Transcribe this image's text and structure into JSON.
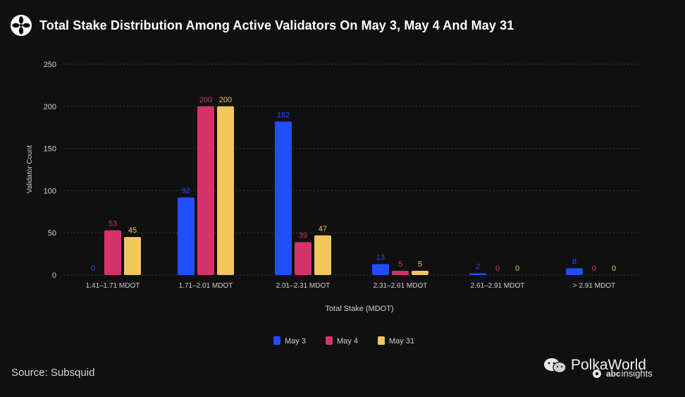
{
  "header": {
    "title": "Total Stake Distribution Among Active Validators On May 3, May 4 And May 31",
    "logo_icon": "flower-logo-icon"
  },
  "footer": {
    "source": "Source: Subsquid"
  },
  "watermark": {
    "brand": "PolkaWorld",
    "sub_brand": "insights",
    "sub_prefix": "abc",
    "icon": "wechat-icon"
  },
  "colors": {
    "background": "#101010",
    "grid": "#3a3a3a",
    "axis_text": "#d0d0d0",
    "May 3": "#1f4fff",
    "May 4": "#d6336c",
    "May 31": "#f2c75c"
  },
  "chart_data": {
    "type": "bar",
    "title": "Total Stake Distribution Among Active Validators On May 3, May 4 And May 31",
    "xlabel": "Total Stake (MDOT)",
    "ylabel": "Validator Count",
    "ylim": [
      0,
      250
    ],
    "yticks": [
      0,
      50,
      100,
      150,
      200,
      250
    ],
    "grid": true,
    "legend_position": "bottom-center",
    "categories": [
      "1.41–1.71 MDOT",
      "1.71–2.01 MDOT",
      "2.01–2.31 MDOT",
      "2.31–2.61 MDOT",
      "2.61–2.91 MDOT",
      "> 2.91 MDOT"
    ],
    "series": [
      {
        "name": "May 3",
        "color": "#1f4fff",
        "values": [
          0,
          92,
          182,
          13,
          2,
          8
        ]
      },
      {
        "name": "May 4",
        "color": "#d6336c",
        "values": [
          53,
          200,
          39,
          5,
          0,
          0
        ]
      },
      {
        "name": "May 31",
        "color": "#f2c75c",
        "values": [
          45,
          200,
          47,
          5,
          0,
          0
        ]
      }
    ]
  }
}
